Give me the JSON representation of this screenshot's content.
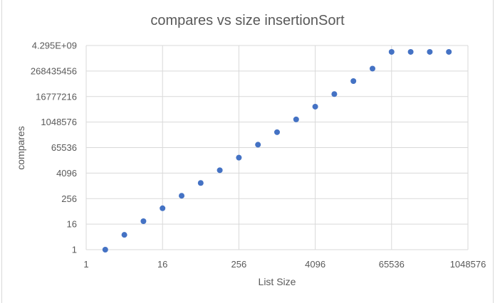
{
  "chart_data": {
    "type": "scatter",
    "title": "compares vs size insertionSort",
    "xlabel": "List Size",
    "ylabel": "compares",
    "x_scale": "log2",
    "y_scale": "log2",
    "xlim": [
      1,
      1048576
    ],
    "ylim": [
      1,
      4294967296
    ],
    "x_ticks": [
      "1",
      "16",
      "256",
      "4096",
      "65536",
      "1048576"
    ],
    "y_ticks": [
      "1",
      "16",
      "256",
      "4096",
      "65536",
      "1048576",
      "16777216",
      "268435456",
      "4.295E+09"
    ],
    "grid": true,
    "marker_color": "#4472C4",
    "series": [
      {
        "x": [
          2,
          4,
          8,
          16,
          32,
          64,
          128,
          256,
          512,
          1024,
          2048,
          4096,
          8192,
          16384,
          32768,
          65536,
          131072,
          262144,
          524288
        ],
        "y": [
          1,
          5,
          22,
          90,
          350,
          1400,
          5600,
          22000,
          90000,
          350000,
          1400000,
          5600000,
          22000000,
          90000000,
          350000000,
          2147483648,
          2147483648,
          2147483648,
          2147483648
        ]
      }
    ]
  }
}
